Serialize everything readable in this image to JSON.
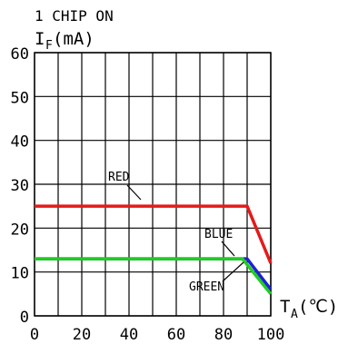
{
  "chart_data": {
    "type": "line",
    "title": "1 CHIP ON",
    "ylabel": {
      "main": "I",
      "sub": "F",
      "unit": "(mA)"
    },
    "xlabel": {
      "main": "T",
      "sub": "A",
      "unit": "(℃)"
    },
    "xlim": [
      0,
      100
    ],
    "ylim": [
      0,
      60
    ],
    "x_ticks": [
      0,
      20,
      40,
      60,
      80,
      100
    ],
    "y_ticks": [
      0,
      10,
      20,
      30,
      40,
      50,
      60
    ],
    "grid": true,
    "series": [
      {
        "name": "RED",
        "color": "#e31a1a",
        "points": [
          [
            0,
            25
          ],
          [
            90,
            25
          ],
          [
            100,
            12
          ]
        ]
      },
      {
        "name": "BLUE",
        "color": "#1f1fd6",
        "points": [
          [
            0,
            13
          ],
          [
            90,
            13
          ],
          [
            100,
            6
          ]
        ]
      },
      {
        "name": "GREEN",
        "color": "#22cc22",
        "points": [
          [
            0,
            13
          ],
          [
            88,
            13
          ],
          [
            100,
            5
          ]
        ]
      }
    ],
    "annotations": [
      {
        "text": "RED",
        "series": "RED"
      },
      {
        "text": "BLUE",
        "series": "BLUE"
      },
      {
        "text": "GREEN",
        "series": "GREEN"
      }
    ]
  }
}
